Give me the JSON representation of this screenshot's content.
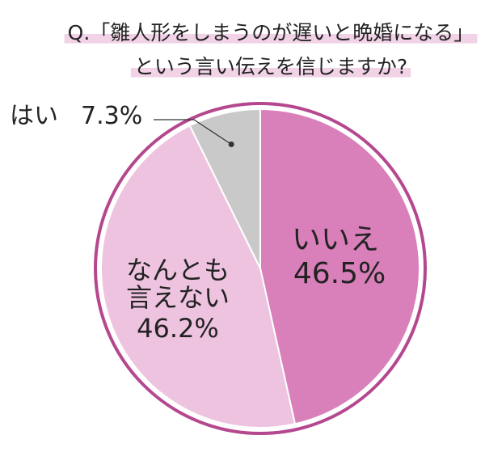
{
  "chart_data": {
    "type": "pie",
    "title": [
      "Q.「雛人形をしまうのが遅いと晩婚になる」",
      "という言い伝えを信じますか?"
    ],
    "categories": [
      "いいえ",
      "なんとも言えない",
      "はい"
    ],
    "values": [
      46.5,
      46.2,
      7.3
    ],
    "value_labels": [
      "46.5%",
      "46.2%",
      "7.3%"
    ],
    "colors": [
      "#d97fba",
      "#eec3e0",
      "#c9c9c9"
    ]
  }
}
